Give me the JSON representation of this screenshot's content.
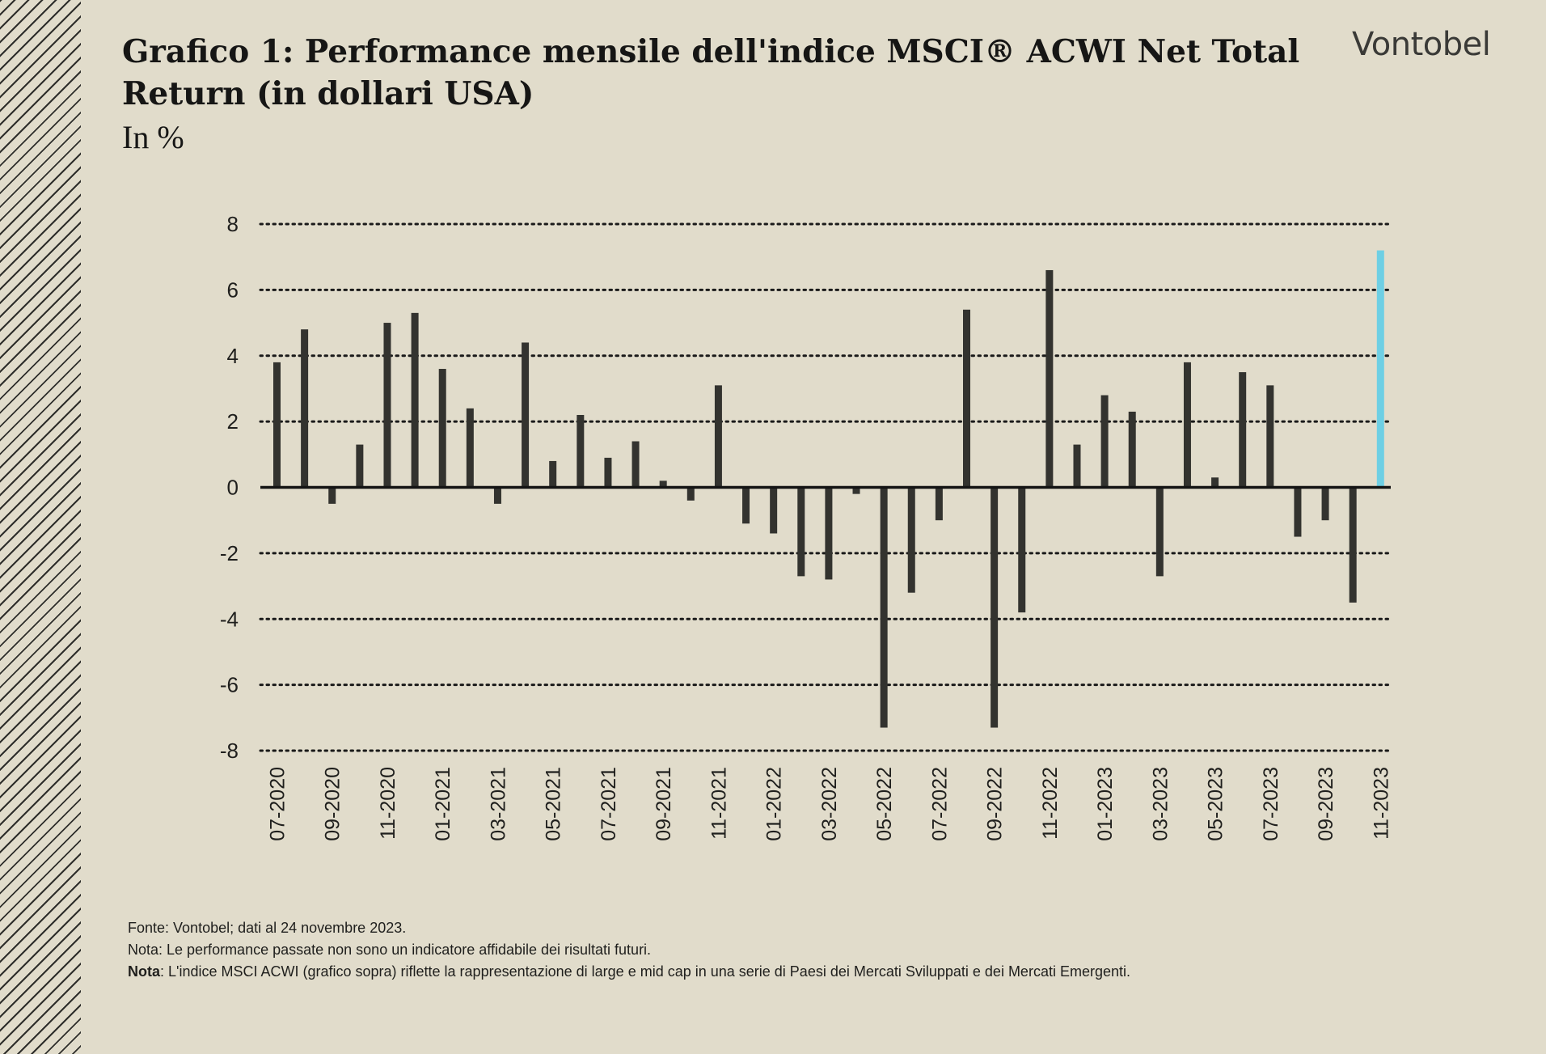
{
  "header": {
    "title": "Grafico 1: Performance mensile dell'indice MSCI® ACWI Net Total Return (in dollari USA)",
    "subtitle": "In %",
    "brand": "Vontobel"
  },
  "footer": {
    "source": "Fonte: Vontobel; dati al 24 novembre 2023.",
    "disclaimer": "Nota: Le performance passate non sono un indicatore affidabile dei risultati futuri.",
    "note_label": "Nota",
    "note_text": ": L'indice MSCI ACWI (grafico sopra) riflette la rappresentazione di large e mid cap in una serie di Paesi dei Mercati Sviluppati e dei Mercati Emergenti."
  },
  "colors": {
    "bar": "#33332f",
    "highlight": "#6ecfe4",
    "grid": "#1a1a1a"
  },
  "chart_data": {
    "type": "bar",
    "title": "Grafico 1: Performance mensile dell'indice MSCI® ACWI Net Total Return (in dollari USA)",
    "ylabel": "In %",
    "xlabel": "",
    "ylim": [
      -8,
      8
    ],
    "yticks": [
      8,
      6,
      4,
      2,
      0,
      -2,
      -4,
      -6,
      -8
    ],
    "grid": true,
    "categories": [
      "07-2020",
      "08-2020",
      "09-2020",
      "10-2020",
      "11-2020",
      "12-2020",
      "01-2021",
      "02-2021",
      "03-2021",
      "04-2021",
      "05-2021",
      "06-2021",
      "07-2021",
      "08-2021",
      "09-2021",
      "10-2021",
      "11-2021",
      "12-2021",
      "01-2022",
      "02-2022",
      "03-2022",
      "04-2022",
      "05-2022",
      "06-2022",
      "07-2022",
      "08-2022",
      "09-2022",
      "10-2022",
      "11-2022",
      "12-2022",
      "01-2023",
      "02-2023",
      "03-2023",
      "04-2023",
      "05-2023",
      "06-2023",
      "07-2023",
      "08-2023",
      "09-2023",
      "10-2023",
      "11-2023"
    ],
    "tick_labels": [
      "07-2020",
      "",
      "09-2020",
      "",
      "11-2020",
      "",
      "01-2021",
      "",
      "03-2021",
      "",
      "05-2021",
      "",
      "07-2021",
      "",
      "09-2021",
      "",
      "11-2021",
      "",
      "01-2022",
      "",
      "03-2022",
      "",
      "05-2022",
      "",
      "07-2022",
      "",
      "09-2022",
      "",
      "11-2022",
      "",
      "01-2023",
      "",
      "03-2023",
      "",
      "05-2023",
      "",
      "07-2023",
      "",
      "09-2023",
      "",
      "11-2023"
    ],
    "series": [
      {
        "name": "MSCI ACWI Net Total Return (USD)",
        "values": [
          3.8,
          4.8,
          -0.5,
          1.3,
          5.0,
          5.3,
          3.6,
          2.4,
          -0.5,
          4.4,
          0.8,
          2.2,
          0.9,
          1.4,
          0.2,
          -0.4,
          3.1,
          -1.1,
          -1.4,
          -2.7,
          -2.8,
          -0.2,
          -7.3,
          -3.2,
          -1.0,
          5.4,
          -7.3,
          -3.8,
          6.6,
          1.3,
          2.8,
          2.3,
          -2.7,
          3.8,
          0.3,
          3.5,
          3.1,
          -1.5,
          -1.0,
          -3.5,
          7.2
        ]
      }
    ],
    "highlight_index": 40
  }
}
